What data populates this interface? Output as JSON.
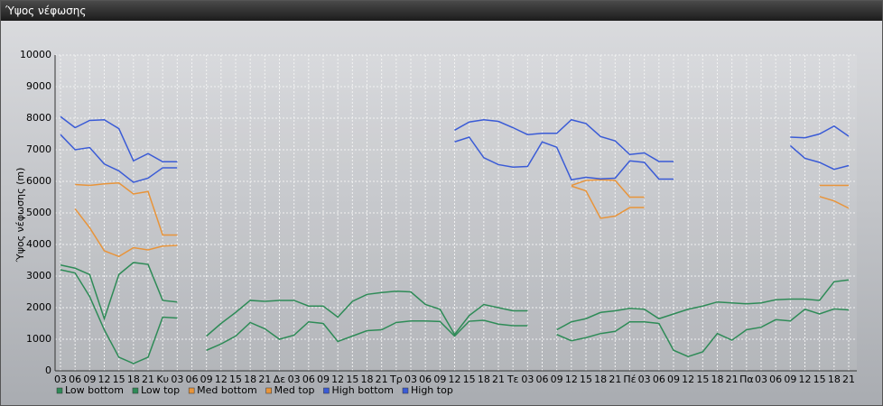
{
  "window_title": "Ύψος νέφωσης",
  "chart_data": {
    "type": "line",
    "y_label": "Ύψος νέφωσης (m)",
    "categories": [
      "03",
      "06",
      "09",
      "12",
      "15",
      "18",
      "21",
      "Κυ",
      "03",
      "06",
      "09",
      "12",
      "15",
      "18",
      "21",
      "Δε",
      "03",
      "06",
      "09",
      "12",
      "15",
      "18",
      "21",
      "Τρ",
      "03",
      "06",
      "09",
      "12",
      "15",
      "18",
      "21",
      "Τε",
      "03",
      "06",
      "09",
      "12",
      "15",
      "18",
      "21",
      "Πέ",
      "03",
      "06",
      "09",
      "12",
      "15",
      "18",
      "21",
      "Πα",
      "03",
      "06",
      "09",
      "12",
      "15",
      "18",
      "21"
    ],
    "ylim": [
      0,
      10000
    ],
    "yticks": [
      0,
      1000,
      2000,
      3000,
      4000,
      5000,
      6000,
      7000,
      8000,
      9000,
      10000
    ],
    "grid": true,
    "series": [
      {
        "name": "Low bottom",
        "color": "#2e8b57",
        "values": [
          3200,
          3100,
          2350,
          1300,
          430,
          230,
          430,
          1700,
          1670,
          null,
          650,
          850,
          1100,
          1530,
          1330,
          1000,
          1130,
          1550,
          1500,
          930,
          1100,
          1270,
          1300,
          1530,
          1580,
          1580,
          1560,
          1100,
          1570,
          1600,
          1480,
          1430,
          1430,
          null,
          1150,
          950,
          1050,
          1180,
          1250,
          1550,
          1550,
          1500,
          650,
          450,
          600,
          1180,
          970,
          1300,
          1380,
          1620,
          1580,
          1950,
          1800,
          1960,
          1930
        ]
      },
      {
        "name": "Low top",
        "color": "#2e8b57",
        "values": [
          3350,
          3250,
          3050,
          1650,
          3050,
          3430,
          3370,
          2230,
          2180,
          null,
          1100,
          1500,
          1850,
          2230,
          2200,
          2230,
          2230,
          2050,
          2050,
          1700,
          2200,
          2420,
          2480,
          2520,
          2500,
          2100,
          1950,
          1150,
          1750,
          2100,
          2000,
          1900,
          1900,
          null,
          1300,
          1550,
          1650,
          1850,
          1900,
          1980,
          1950,
          1650,
          1800,
          1950,
          2050,
          2180,
          2150,
          2120,
          2150,
          2250,
          2270,
          2270,
          2230,
          2820,
          2880
        ]
      },
      {
        "name": "Med bottom",
        "color": "#e8943a",
        "values": [
          null,
          5130,
          4530,
          3800,
          3620,
          3900,
          3830,
          3950,
          3970,
          null,
          null,
          null,
          null,
          null,
          null,
          null,
          null,
          null,
          null,
          null,
          null,
          null,
          null,
          null,
          null,
          null,
          null,
          null,
          null,
          null,
          null,
          null,
          null,
          null,
          null,
          5850,
          5700,
          4830,
          4900,
          5170,
          5170,
          null,
          null,
          null,
          null,
          null,
          null,
          null,
          null,
          null,
          null,
          null,
          5520,
          5380,
          5150
        ]
      },
      {
        "name": "Med top",
        "color": "#e8943a",
        "values": [
          null,
          5900,
          5870,
          5920,
          5950,
          5600,
          5680,
          4300,
          4300,
          null,
          null,
          null,
          null,
          null,
          null,
          null,
          null,
          null,
          null,
          null,
          null,
          null,
          null,
          null,
          null,
          null,
          null,
          null,
          null,
          null,
          null,
          null,
          null,
          null,
          null,
          5870,
          6030,
          6050,
          6030,
          5500,
          5500,
          null,
          null,
          null,
          null,
          null,
          null,
          null,
          null,
          null,
          null,
          null,
          5870,
          5870,
          5870
        ]
      },
      {
        "name": "High bottom",
        "color": "#3a5bd6",
        "values": [
          7480,
          7000,
          7070,
          6550,
          6330,
          5970,
          6100,
          6430,
          6430,
          null,
          null,
          null,
          null,
          null,
          null,
          null,
          null,
          null,
          null,
          null,
          null,
          null,
          null,
          null,
          null,
          null,
          null,
          7250,
          7400,
          6750,
          6530,
          6450,
          6470,
          7250,
          7080,
          6050,
          6130,
          6080,
          6100,
          6650,
          6600,
          6070,
          6070,
          null,
          null,
          null,
          null,
          null,
          null,
          null,
          7130,
          6730,
          6600,
          6380,
          6500
        ]
      },
      {
        "name": "High top",
        "color": "#3a5bd6",
        "values": [
          8050,
          7700,
          7930,
          7950,
          7670,
          6650,
          6880,
          6620,
          6620,
          null,
          null,
          null,
          null,
          null,
          null,
          null,
          null,
          null,
          null,
          null,
          null,
          null,
          null,
          null,
          null,
          null,
          null,
          7620,
          7880,
          7950,
          7900,
          7700,
          7480,
          7520,
          7520,
          7950,
          7830,
          7420,
          7280,
          6850,
          6900,
          6630,
          6630,
          null,
          null,
          null,
          null,
          null,
          null,
          null,
          7400,
          7380,
          7500,
          7750,
          7430
        ]
      }
    ]
  }
}
